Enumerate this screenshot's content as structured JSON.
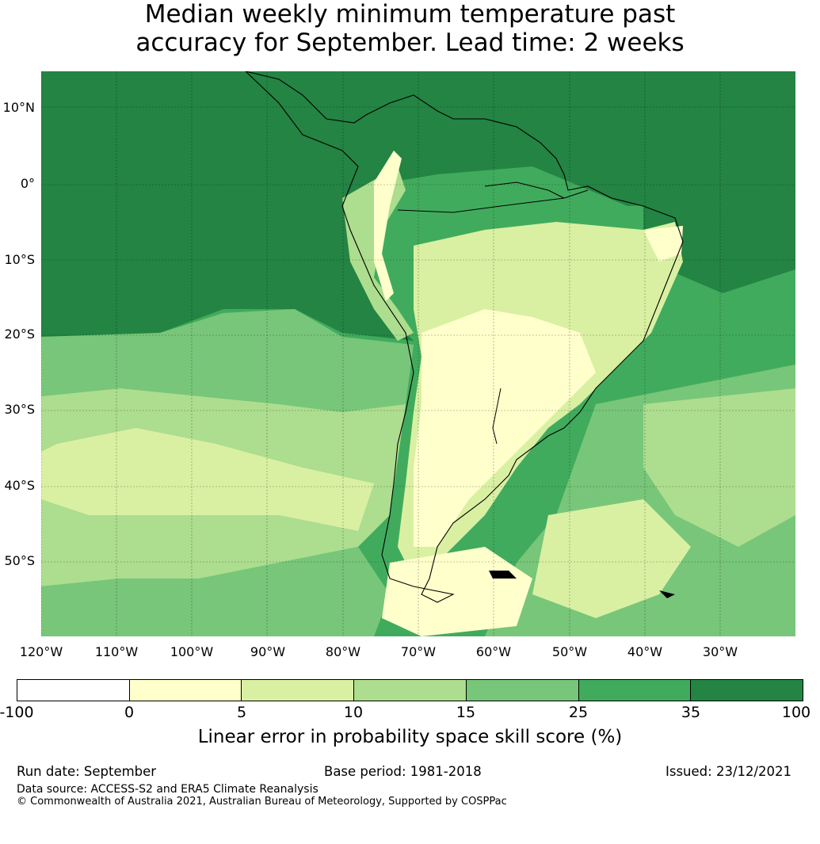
{
  "title": {
    "line1": "Median weekly minimum temperature past",
    "line2": "accuracy for September. Lead time: 2 weeks"
  },
  "map": {
    "lat_labels": [
      "10°N",
      "0°",
      "10°S",
      "20°S",
      "30°S",
      "40°S",
      "50°S"
    ],
    "lon_labels": [
      "120°W",
      "110°W",
      "100°W",
      "90°W",
      "80°W",
      "70°W",
      "60°W",
      "50°W",
      "40°W",
      "30°W"
    ],
    "region": "South America"
  },
  "colorbar": {
    "ticks": [
      "-100",
      "0",
      "5",
      "10",
      "15",
      "25",
      "35",
      "100"
    ],
    "colors": [
      "#ffffff",
      "#ffffcc",
      "#d9f0a3",
      "#addd8e",
      "#78c679",
      "#41ab5d",
      "#238443"
    ],
    "label": "Linear error in probability space skill score (%)"
  },
  "footer": {
    "run_date": "Run date: September",
    "base_period": "Base period: 1981-2018",
    "issued": "Issued: 23/12/2021",
    "data_source": "Data source: ACCESS-S2 and ERA5 Climate Reanalysis",
    "copyright": "© Commonwealth of Australia 2021, Australian Bureau of Meteorology, Supported by COSPPac"
  }
}
